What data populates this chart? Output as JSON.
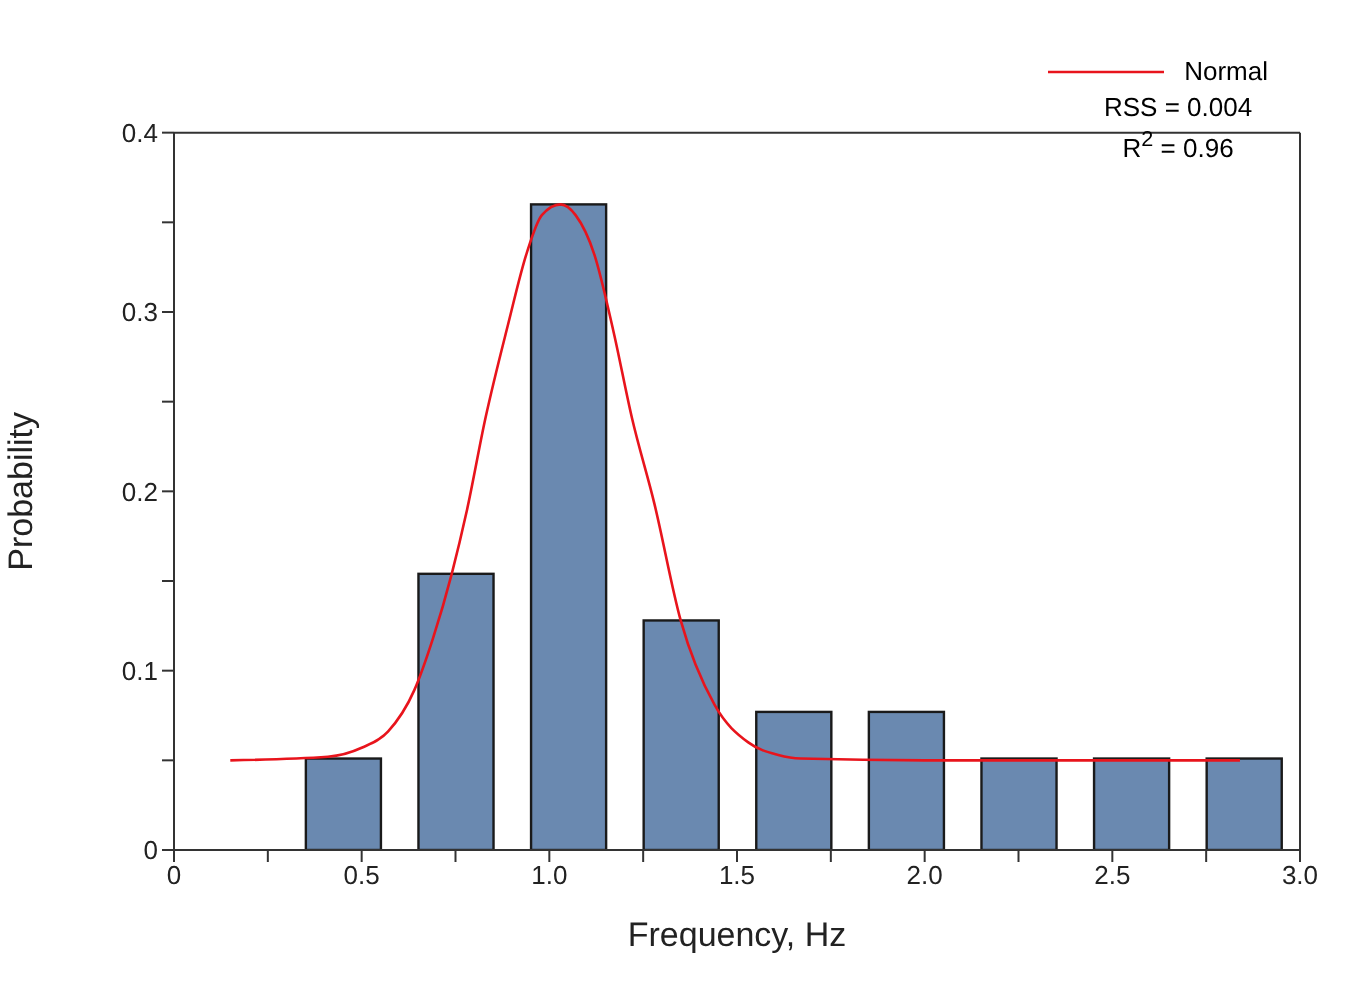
{
  "chart_data": {
    "type": "bar",
    "xlabel": "Frequency, Hz",
    "ylabel": "Probability",
    "annotations": [
      "RSS = 0.004",
      "R$^{2}$ = 0.96"
    ],
    "x": [
      0.45,
      0.75,
      1.05,
      1.35,
      1.65,
      1.95,
      2.25,
      2.55,
      2.85
    ],
    "series": [
      {
        "color": "#6a89b0",
        "values": [
          0.051,
          0.154,
          0.36,
          0.128,
          0.077,
          0.077,
          0.051,
          0.051,
          0.051
        ]
      },
      {
        "type": "line",
        "name": "Normal",
        "color": "#e8141c",
        "x": [
          0.15,
          0.41,
          0.5,
          0.57,
          0.64,
          0.69,
          0.74,
          0.78,
          0.83,
          0.89,
          0.94,
          0.98,
          1.03,
          1.07,
          1.12,
          1.17,
          1.22,
          1.28,
          1.35,
          1.44,
          1.53,
          1.61,
          1.67,
          2.0,
          2.5,
          2.84
        ],
        "values": [
          0.05,
          0.052,
          0.057,
          0.066,
          0.089,
          0.118,
          0.154,
          0.189,
          0.241,
          0.293,
          0.333,
          0.354,
          0.36,
          0.354,
          0.332,
          0.29,
          0.241,
          0.193,
          0.128,
          0.081,
          0.06,
          0.053,
          0.051,
          0.05,
          0.05,
          0.05
        ]
      }
    ],
    "xlim": [
      0,
      3
    ],
    "xticks": [
      0,
      {
        "value": 0.25,
        "label": null
      },
      0.5,
      {
        "value": 0.75,
        "label": null
      },
      {
        "value": 1,
        "label": "1.0"
      },
      {
        "value": 1.25,
        "label": null
      },
      1.5,
      {
        "value": 1.75,
        "label": null
      },
      {
        "value": 2,
        "label": "2.0"
      },
      {
        "value": 2.25,
        "label": null
      },
      2.5,
      {
        "value": 2.75,
        "label": null
      },
      {
        "value": 3,
        "label": "3.0"
      }
    ],
    "ylim": [
      0,
      0.4
    ],
    "yticks": [
      0,
      {
        "value": 0.05,
        "label": null
      },
      0.1,
      {
        "value": 0.15,
        "label": null
      },
      0.2,
      {
        "value": 0.25,
        "label": null
      },
      0.3,
      {
        "value": 0.35,
        "label": null
      },
      0.4
    ],
    "legend": "top right"
  }
}
